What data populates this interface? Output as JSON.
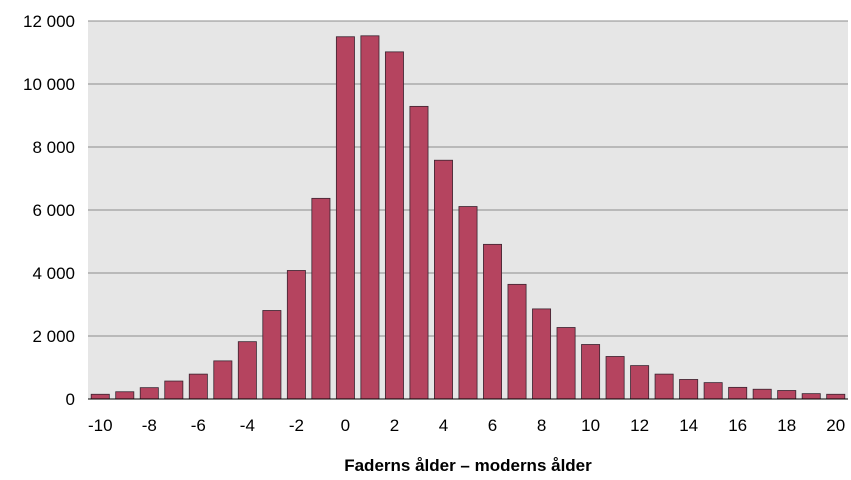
{
  "chart_data": {
    "type": "bar",
    "title": "",
    "xlabel": "Faderns ålder – moderns ålder",
    "ylabel": "",
    "categories": [
      -10,
      -9,
      -8,
      -7,
      -6,
      -5,
      -4,
      -3,
      -2,
      -1,
      0,
      1,
      2,
      3,
      4,
      5,
      6,
      7,
      8,
      9,
      10,
      11,
      12,
      13,
      14,
      15,
      16,
      17,
      18,
      19,
      20
    ],
    "values": [
      150,
      230,
      360,
      570,
      790,
      1210,
      1820,
      2810,
      4080,
      6370,
      11500,
      11530,
      11020,
      9290,
      7580,
      6110,
      4910,
      3640,
      2860,
      2270,
      1730,
      1350,
      1060,
      790,
      620,
      520,
      370,
      310,
      270,
      170,
      150
    ],
    "ylim": [
      0,
      12000
    ],
    "yticks": [
      0,
      2000,
      4000,
      6000,
      8000,
      10000,
      12000
    ],
    "ytick_labels": [
      "0",
      "2 000",
      "4 000",
      "6 000",
      "8 000",
      "10 000",
      "12 000"
    ],
    "xticks": [
      -10,
      -8,
      -6,
      -4,
      -2,
      0,
      2,
      4,
      6,
      8,
      10,
      12,
      14,
      16,
      18,
      20
    ],
    "xtick_labels": [
      "-10",
      "-8",
      "-6",
      "-4",
      "-2",
      "0",
      "2",
      "4",
      "6",
      "8",
      "10",
      "12",
      "14",
      "16",
      "18",
      "20"
    ],
    "grid": true,
    "colors": {
      "bar_fill": "#b5445f",
      "bar_stroke": "#3a2430",
      "plot_bg": "#e6e6e6",
      "grid": "#8c8c8c"
    }
  }
}
